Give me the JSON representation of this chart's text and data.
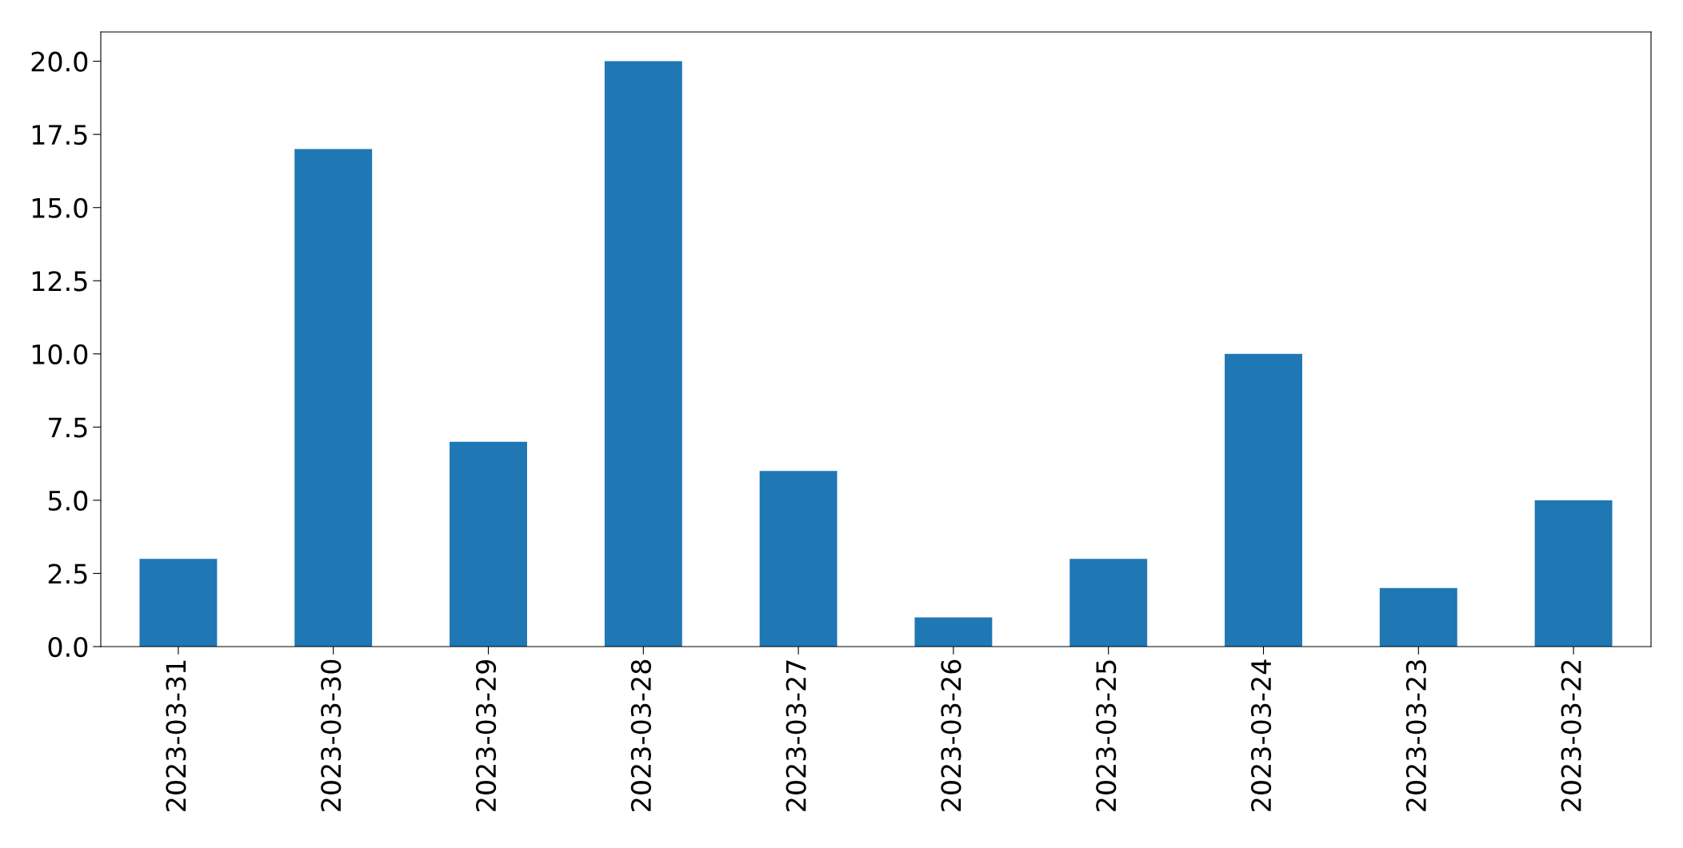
{
  "chart_data": {
    "type": "bar",
    "categories": [
      "2023-03-31",
      "2023-03-30",
      "2023-03-29",
      "2023-03-28",
      "2023-03-27",
      "2023-03-26",
      "2023-03-25",
      "2023-03-24",
      "2023-03-23",
      "2023-03-22"
    ],
    "values": [
      3,
      17,
      7,
      20,
      6,
      1,
      3,
      10,
      2,
      5
    ],
    "color": "#1f77b4",
    "ylim": [
      0,
      21
    ],
    "yticks": [
      {
        "value": 0,
        "label": "0.0"
      },
      {
        "value": 2.5,
        "label": "2.5"
      },
      {
        "value": 5,
        "label": "5.0"
      },
      {
        "value": 7.5,
        "label": "7.5"
      },
      {
        "value": 10,
        "label": "10.0"
      },
      {
        "value": 12.5,
        "label": "12.5"
      },
      {
        "value": 15,
        "label": "15.0"
      },
      {
        "value": 17.5,
        "label": "17.5"
      },
      {
        "value": 20,
        "label": "20.0"
      }
    ],
    "grid": false
  }
}
